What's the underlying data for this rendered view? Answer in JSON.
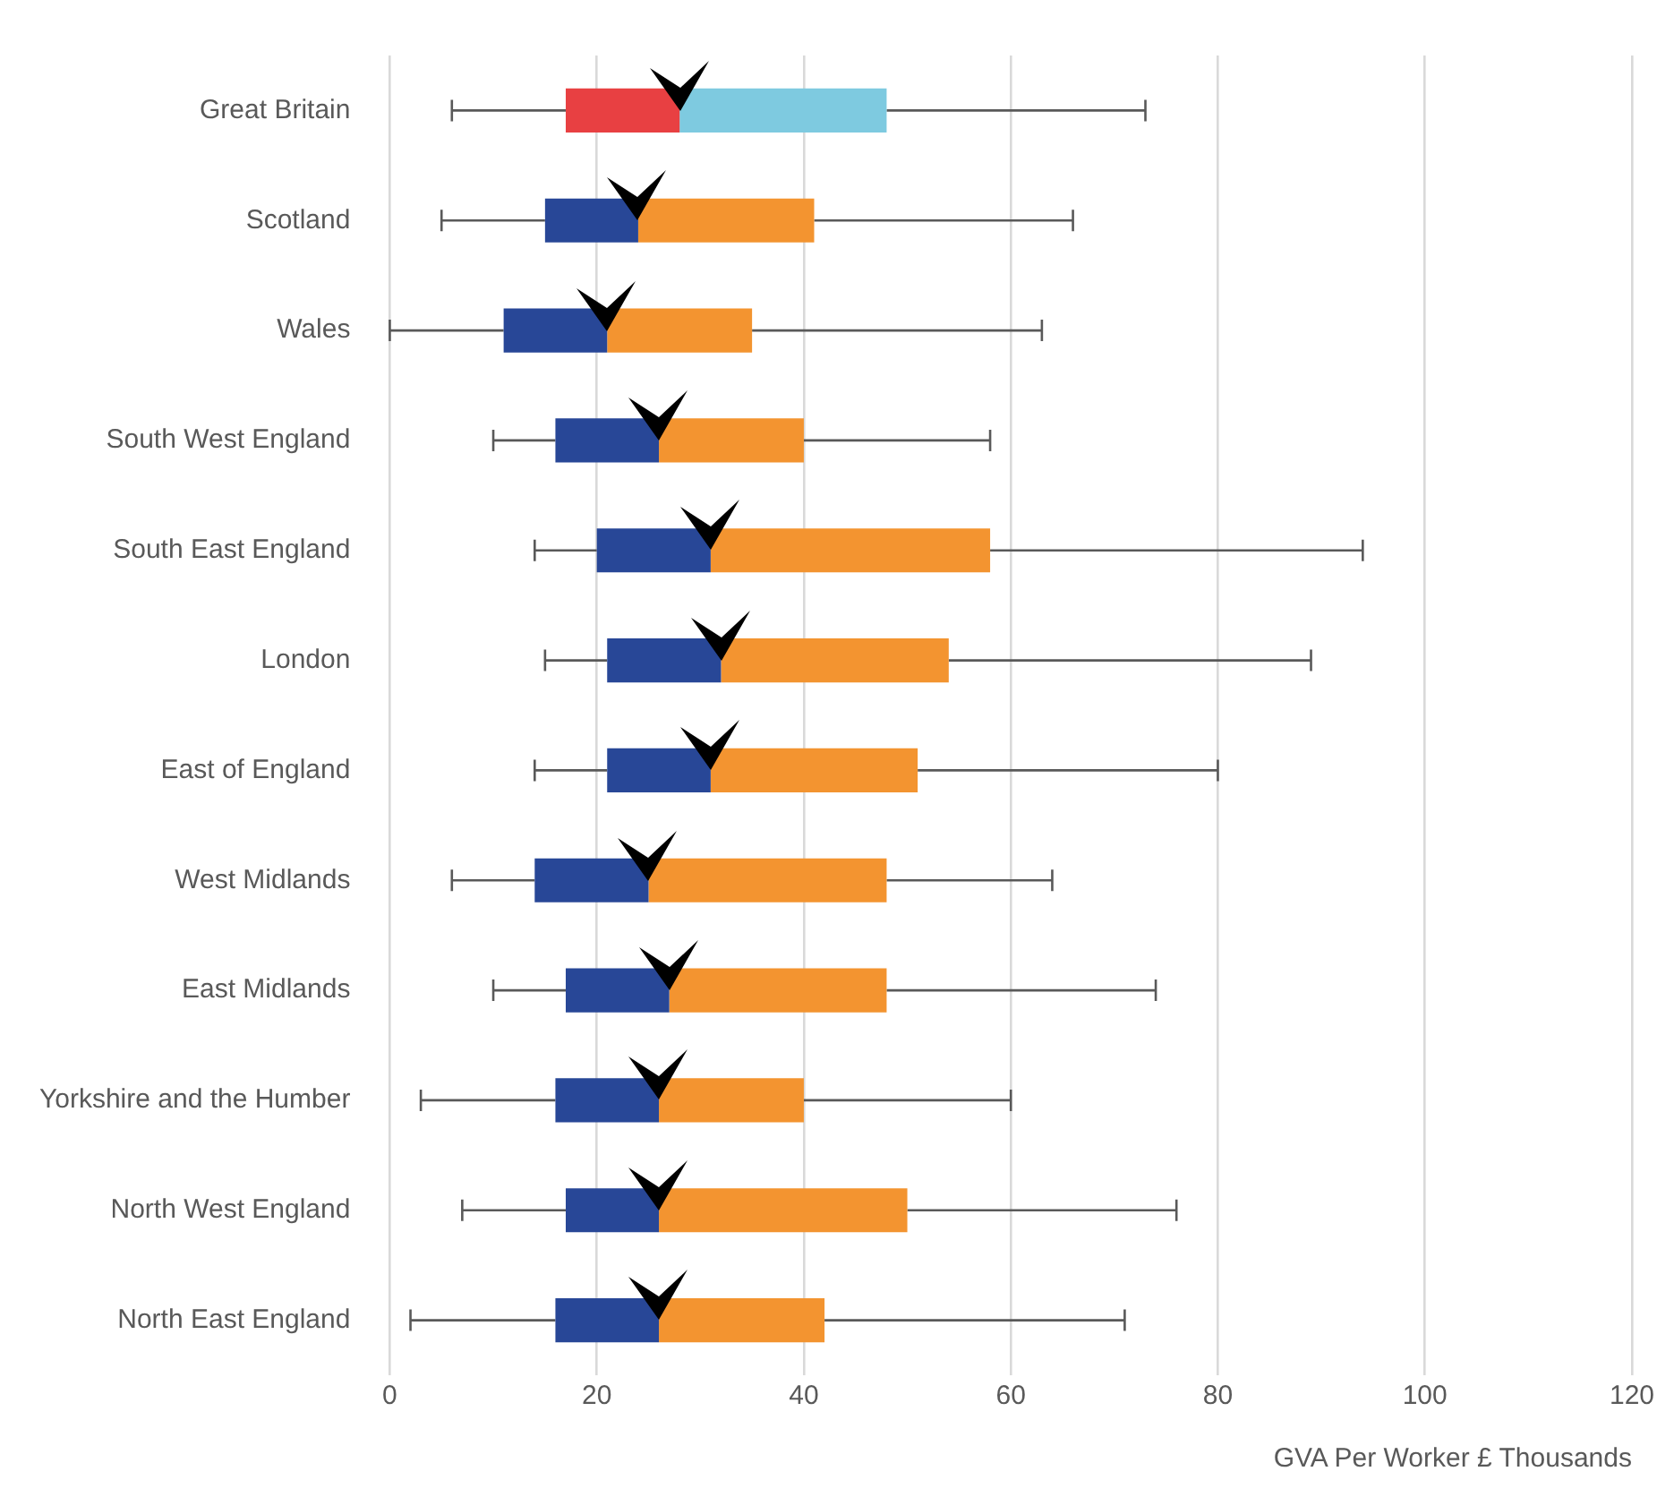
{
  "chart_data": {
    "type": "box",
    "orientation": "horizontal",
    "xlabel": "GVA Per Worker £ Thousands",
    "categories": [
      "Great Britain",
      "Scotland",
      "Wales",
      "South West England",
      "South East England",
      "London",
      "East of England",
      "West Midlands",
      "East Midlands",
      "Yorkshire and the Humber",
      "North West England",
      "North East England"
    ],
    "boxes": [
      {
        "low": 6,
        "q1": 17,
        "median": 28,
        "q3": 48,
        "high": 73
      },
      {
        "low": 5,
        "q1": 15,
        "median": 24,
        "q3": 41,
        "high": 66
      },
      {
        "low": 0,
        "q1": 11,
        "median": 21,
        "q3": 35,
        "high": 63
      },
      {
        "low": 10,
        "q1": 16,
        "median": 26,
        "q3": 40,
        "high": 58
      },
      {
        "low": 14,
        "q1": 20,
        "median": 31,
        "q3": 58,
        "high": 94
      },
      {
        "low": 15,
        "q1": 21,
        "median": 32,
        "q3": 54,
        "high": 89
      },
      {
        "low": 14,
        "q1": 21,
        "median": 31,
        "q3": 51,
        "high": 80
      },
      {
        "low": 6,
        "q1": 14,
        "median": 25,
        "q3": 48,
        "high": 64
      },
      {
        "low": 10,
        "q1": 17,
        "median": 27,
        "q3": 48,
        "high": 74
      },
      {
        "low": 3,
        "q1": 16,
        "median": 26,
        "q3": 40,
        "high": 60
      },
      {
        "low": 7,
        "q1": 17,
        "median": 26,
        "q3": 50,
        "high": 76
      },
      {
        "low": 2,
        "q1": 16,
        "median": 26,
        "q3": 42,
        "high": 71
      }
    ],
    "colors": [
      [
        "#e84042",
        "#7ecae0"
      ],
      [
        "#284797",
        "#f39430"
      ],
      [
        "#284797",
        "#f39430"
      ],
      [
        "#284797",
        "#f39430"
      ],
      [
        "#284797",
        "#f39430"
      ],
      [
        "#284797",
        "#f39430"
      ],
      [
        "#284797",
        "#f39430"
      ],
      [
        "#284797",
        "#f39430"
      ],
      [
        "#284797",
        "#f39430"
      ],
      [
        "#284797",
        "#f39430"
      ],
      [
        "#284797",
        "#f39430"
      ],
      [
        "#284797",
        "#f39430"
      ]
    ],
    "xlim": [
      0,
      120
    ],
    "xticks": [
      0,
      20,
      40,
      60,
      80,
      100,
      120
    ],
    "grid": "x",
    "legend": false
  }
}
